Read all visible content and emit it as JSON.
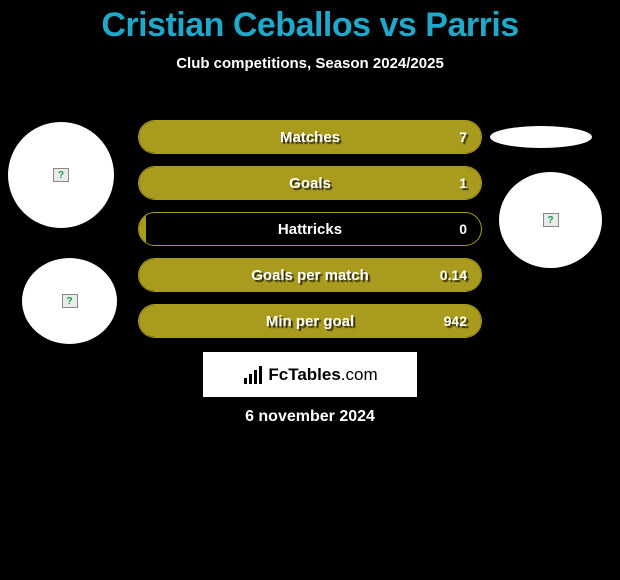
{
  "title": "Cristian Ceballos vs Parris",
  "subtitle": "Club competitions, Season 2024/2025",
  "date": "6 november 2024",
  "colors": {
    "title": "#1fa8c9",
    "background": "#000000",
    "bar_fill": "#a99b1d",
    "bar_border": "#a99b1d",
    "text": "#ffffff"
  },
  "stats": [
    {
      "label": "Matches",
      "value": "7",
      "fill_pct": 100
    },
    {
      "label": "Goals",
      "value": "1",
      "fill_pct": 100
    },
    {
      "label": "Hattricks",
      "value": "0",
      "fill_pct": 2
    },
    {
      "label": "Goals per match",
      "value": "0.14",
      "fill_pct": 100
    },
    {
      "label": "Min per goal",
      "value": "942",
      "fill_pct": 100
    }
  ],
  "brand": {
    "name": "FcTables",
    "suffix": ".com"
  },
  "avatars": {
    "left_top": {
      "shape": "circle",
      "has_image": false
    },
    "left_bot": {
      "shape": "circle",
      "has_image": false
    },
    "right_top": {
      "shape": "ellipse",
      "has_image": false
    },
    "right_mid": {
      "shape": "circle",
      "has_image": false
    }
  }
}
